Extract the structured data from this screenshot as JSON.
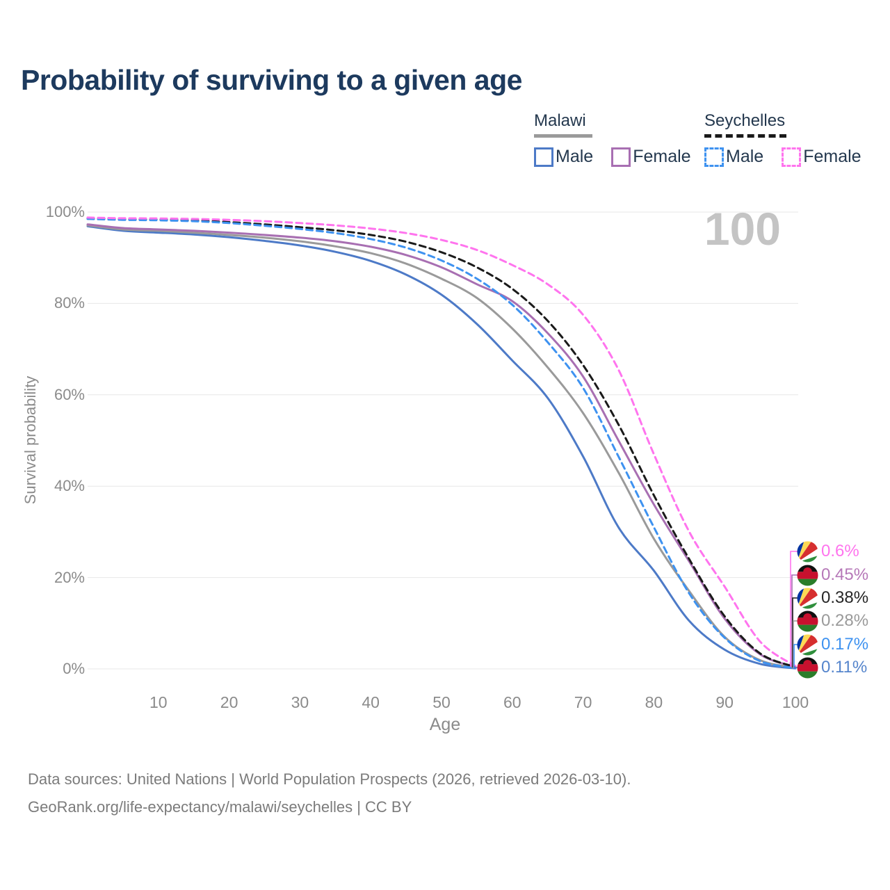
{
  "title": "Probability of surviving to a given age",
  "watermark_age_counter": "100",
  "legend": {
    "groups": [
      {
        "name": "Malawi",
        "line_style": "solid",
        "color": "#9a9a9a",
        "items": [
          {
            "label": "Male",
            "color": "#4d7ac7"
          },
          {
            "label": "Female",
            "color": "#a86fb2"
          }
        ]
      },
      {
        "name": "Seychelles",
        "line_style": "dashed",
        "color": "#1a1a1a",
        "items": [
          {
            "label": "Male",
            "color": "#3e92f0"
          },
          {
            "label": "Female",
            "color": "#ff74ee"
          }
        ]
      }
    ]
  },
  "chart_data": {
    "type": "line",
    "title": "Probability of surviving to a given age",
    "xlabel": "Age",
    "ylabel": "Survival probability",
    "xlim": [
      0,
      100
    ],
    "ylim": [
      0,
      100
    ],
    "grid": "horizontal",
    "x_ticks": [
      10,
      20,
      30,
      40,
      50,
      60,
      70,
      80,
      90,
      100
    ],
    "y_ticks": [
      {
        "value": 0,
        "label": "0%"
      },
      {
        "value": 20,
        "label": "20%"
      },
      {
        "value": 40,
        "label": "40%"
      },
      {
        "value": 60,
        "label": "60%"
      },
      {
        "value": 80,
        "label": "80%"
      },
      {
        "value": 100,
        "label": "100%"
      }
    ],
    "ages": [
      0,
      5,
      10,
      15,
      20,
      25,
      30,
      35,
      40,
      45,
      50,
      55,
      60,
      65,
      70,
      75,
      80,
      85,
      90,
      95,
      100
    ],
    "series": [
      {
        "name": "Malawi Male",
        "country": "Malawi",
        "sex": "Male",
        "style": "solid",
        "color": "#4d7ac7",
        "end_label": "0.11%",
        "values": [
          96.9,
          95.9,
          95.5,
          95.1,
          94.5,
          93.7,
          92.7,
          91.3,
          89.3,
          86.3,
          81.9,
          75.5,
          67.5,
          59.3,
          46.5,
          31.0,
          21.5,
          10.5,
          4.2,
          1.1,
          0.11
        ]
      },
      {
        "name": "Malawi (both sexes)",
        "country": "Malawi",
        "sex": "Both",
        "style": "solid",
        "color": "#9a9a9a",
        "end_label": "0.28%",
        "values": [
          97.1,
          96.2,
          95.9,
          95.5,
          95.0,
          94.4,
          93.6,
          92.5,
          91.0,
          88.7,
          85.4,
          81.2,
          74.5,
          66.0,
          56.0,
          43.0,
          28.5,
          17.0,
          7.0,
          1.9,
          0.28
        ]
      },
      {
        "name": "Malawi Female",
        "country": "Malawi",
        "sex": "Female",
        "style": "solid",
        "color": "#a86fb2",
        "end_label": "0.45%",
        "values": [
          97.3,
          96.5,
          96.2,
          95.9,
          95.5,
          95.0,
          94.4,
          93.6,
          92.4,
          90.6,
          87.9,
          84.2,
          80.5,
          73.5,
          64.0,
          50.0,
          36.0,
          23.5,
          11.0,
          3.2,
          0.45
        ]
      },
      {
        "name": "Seychelles (both sexes)",
        "country": "Seychelles",
        "sex": "Both",
        "style": "dashed",
        "color": "#1a1a1a",
        "end_label": "0.38%",
        "values": [
          98.6,
          98.45,
          98.35,
          98.15,
          97.8,
          97.3,
          96.7,
          96.0,
          95.0,
          93.5,
          91.2,
          87.9,
          83.2,
          76.2,
          66.5,
          53.5,
          38.0,
          24.0,
          11.5,
          3.4,
          0.38
        ]
      },
      {
        "name": "Seychelles Male",
        "country": "Seychelles",
        "sex": "Male",
        "style": "dashed",
        "color": "#3e92f0",
        "end_label": "0.17%",
        "values": [
          98.5,
          98.3,
          98.2,
          98.0,
          97.6,
          97.0,
          96.3,
          95.4,
          94.1,
          92.2,
          89.4,
          85.4,
          79.7,
          71.5,
          61.5,
          46.5,
          31.0,
          16.5,
          6.8,
          1.7,
          0.17
        ]
      },
      {
        "name": "Seychelles Female",
        "country": "Seychelles",
        "sex": "Female",
        "style": "dashed",
        "color": "#ff74ee",
        "end_label": "0.6%",
        "values": [
          98.8,
          98.65,
          98.6,
          98.5,
          98.3,
          98.0,
          97.6,
          97.1,
          96.4,
          95.4,
          93.9,
          91.7,
          88.4,
          84.2,
          77.5,
          65.5,
          47.0,
          30.0,
          18.0,
          6.0,
          0.6
        ]
      }
    ],
    "end_labels": [
      {
        "value": "0.6%",
        "series": "Seychelles Female",
        "flag": "seychelles",
        "color": "#ff74ee"
      },
      {
        "value": "0.45%",
        "series": "Malawi Female",
        "flag": "malawi",
        "color": "#b678b8"
      },
      {
        "value": "0.38%",
        "series": "Seychelles (both sexes)",
        "flag": "seychelles",
        "color": "#262626"
      },
      {
        "value": "0.28%",
        "series": "Malawi (both sexes)",
        "flag": "malawi",
        "color": "#9a9a9a"
      },
      {
        "value": "0.17%",
        "series": "Seychelles Male",
        "flag": "seychelles",
        "color": "#3e92f0"
      },
      {
        "value": "0.11%",
        "series": "Malawi Male",
        "flag": "malawi",
        "color": "#5585cc"
      }
    ]
  },
  "footer": {
    "line1": "Data sources: United Nations | World Population Prospects (2026, retrieved 2026-03-10).",
    "line2": "GeoRank.org/life-expectancy/malawi/seychelles | CC BY"
  }
}
